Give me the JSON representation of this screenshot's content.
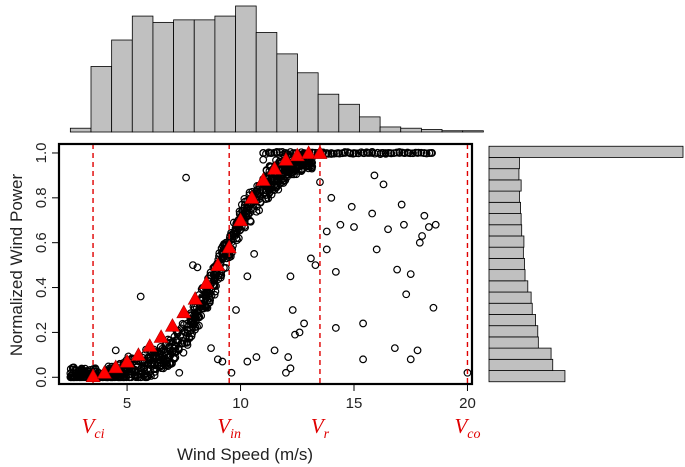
{
  "chart_data": {
    "type": "scatter",
    "title": "",
    "xlabel": "Wind Speed (m/s)",
    "ylabel": "Normalized Wind Power",
    "xlim": [
      2,
      20.2
    ],
    "ylim": [
      -0.03,
      1.04
    ],
    "x_ticks": [
      {
        "value": 5,
        "label": "5"
      },
      {
        "value": 10,
        "label": "10"
      },
      {
        "value": 15,
        "label": "15"
      },
      {
        "value": 20,
        "label": "20"
      }
    ],
    "y_ticks": [
      {
        "value": 0.0,
        "label": "0.0"
      },
      {
        "value": 0.2,
        "label": "0.2"
      },
      {
        "value": 0.4,
        "label": "0.4"
      },
      {
        "value": 0.6,
        "label": "0.6"
      },
      {
        "value": 0.8,
        "label": "0.8"
      },
      {
        "value": 1.0,
        "label": "1.0"
      }
    ],
    "grid": false,
    "colors": {
      "points": "#000000",
      "triangles": "#ff0000",
      "vlines": "#e00000",
      "bars": "#c0c0c0"
    },
    "vertical_lines": [
      {
        "x": 3.5,
        "main": "V",
        "sub": "ci"
      },
      {
        "x": 9.5,
        "main": "V",
        "sub": "in"
      },
      {
        "x": 13.5,
        "main": "V",
        "sub": "r"
      },
      {
        "x": 20.0,
        "main": "V",
        "sub": "co"
      }
    ],
    "binned_means": [
      {
        "x": 3.5,
        "y": 0.005
      },
      {
        "x": 4.0,
        "y": 0.02
      },
      {
        "x": 4.5,
        "y": 0.045
      },
      {
        "x": 5.0,
        "y": 0.07
      },
      {
        "x": 5.5,
        "y": 0.1
      },
      {
        "x": 6.0,
        "y": 0.14
      },
      {
        "x": 6.5,
        "y": 0.18
      },
      {
        "x": 7.0,
        "y": 0.23
      },
      {
        "x": 7.5,
        "y": 0.29
      },
      {
        "x": 8.0,
        "y": 0.35
      },
      {
        "x": 8.5,
        "y": 0.42
      },
      {
        "x": 9.0,
        "y": 0.5
      },
      {
        "x": 9.5,
        "y": 0.58
      },
      {
        "x": 10.0,
        "y": 0.7
      },
      {
        "x": 10.5,
        "y": 0.8
      },
      {
        "x": 11.0,
        "y": 0.88
      },
      {
        "x": 11.5,
        "y": 0.93
      },
      {
        "x": 12.0,
        "y": 0.97
      },
      {
        "x": 12.5,
        "y": 0.99
      },
      {
        "x": 13.0,
        "y": 1.0
      },
      {
        "x": 13.5,
        "y": 1.0
      }
    ],
    "outliers": [
      [
        2.6,
        0.01
      ],
      [
        2.9,
        0.005
      ],
      [
        3.2,
        0.01
      ],
      [
        3.6,
        0.04
      ],
      [
        4.5,
        0.12
      ],
      [
        5.6,
        0.36
      ],
      [
        6.3,
        0.09
      ],
      [
        6.8,
        0.05
      ],
      [
        7.3,
        0.02
      ],
      [
        7.6,
        0.89
      ],
      [
        8.7,
        0.13
      ],
      [
        9.0,
        0.08
      ],
      [
        9.2,
        0.07
      ],
      [
        9.6,
        0.02
      ],
      [
        10.3,
        0.07
      ],
      [
        10.7,
        0.09
      ],
      [
        11.5,
        0.12
      ],
      [
        12.1,
        0.09
      ],
      [
        12.8,
        0.24
      ],
      [
        12.6,
        0.2
      ],
      [
        12.4,
        0.19
      ],
      [
        12.3,
        0.3
      ],
      [
        12.2,
        0.04
      ],
      [
        12.0,
        0.02
      ],
      [
        13.1,
        0.53
      ],
      [
        13.3,
        0.5
      ],
      [
        13.5,
        0.87
      ],
      [
        13.8,
        0.65
      ],
      [
        13.8,
        0.57
      ],
      [
        14.0,
        0.8
      ],
      [
        14.2,
        0.47
      ],
      [
        14.2,
        0.22
      ],
      [
        14.4,
        0.68
      ],
      [
        14.9,
        0.76
      ],
      [
        15.0,
        0.67
      ],
      [
        15.4,
        0.24
      ],
      [
        15.4,
        0.08
      ],
      [
        15.8,
        0.73
      ],
      [
        15.9,
        0.9
      ],
      [
        16.0,
        0.57
      ],
      [
        16.3,
        0.86
      ],
      [
        16.5,
        0.66
      ],
      [
        16.8,
        0.13
      ],
      [
        16.9,
        0.48
      ],
      [
        17.1,
        0.77
      ],
      [
        17.2,
        0.68
      ],
      [
        17.3,
        0.37
      ],
      [
        17.5,
        0.46
      ],
      [
        17.5,
        0.08
      ],
      [
        17.8,
        0.12
      ],
      [
        17.9,
        0.6
      ],
      [
        18.0,
        0.63
      ],
      [
        18.1,
        0.72
      ],
      [
        18.3,
        0.67
      ],
      [
        18.5,
        0.31
      ],
      [
        18.6,
        0.68
      ],
      [
        20.0,
        0.02
      ],
      [
        11.3,
        0.94
      ],
      [
        11.0,
        0.97
      ],
      [
        10.6,
        0.55
      ],
      [
        9.8,
        0.3
      ],
      [
        8.1,
        0.49
      ],
      [
        7.9,
        0.5
      ],
      [
        12.2,
        0.45
      ],
      [
        10.3,
        0.45
      ]
    ],
    "plateau_points_x": [
      11.0,
      11.3,
      11.6,
      12.0,
      12.4,
      12.8,
      13.2,
      13.6,
      14.0,
      14.3,
      14.6,
      15.0,
      15.4,
      15.8,
      16.2,
      16.6,
      17.0,
      17.4,
      17.8,
      18.1,
      18.4,
      13.8,
      14.8,
      15.6,
      16.4,
      17.2
    ],
    "top_histogram": {
      "bin_start": 2.5,
      "bin_width": 0.91,
      "counts": [
        3,
        52,
        73,
        92,
        87,
        89,
        89,
        92,
        100,
        79,
        62,
        47,
        30,
        22,
        12,
        4,
        3,
        2,
        1,
        1
      ]
    },
    "right_histogram": {
      "bin_start": 0.0,
      "bin_width": 0.05,
      "counts": [
        137,
        115,
        112,
        89,
        88,
        84,
        78,
        76,
        70,
        65,
        64,
        62,
        63,
        59,
        58,
        57,
        55,
        58,
        54,
        55,
        350
      ]
    }
  }
}
